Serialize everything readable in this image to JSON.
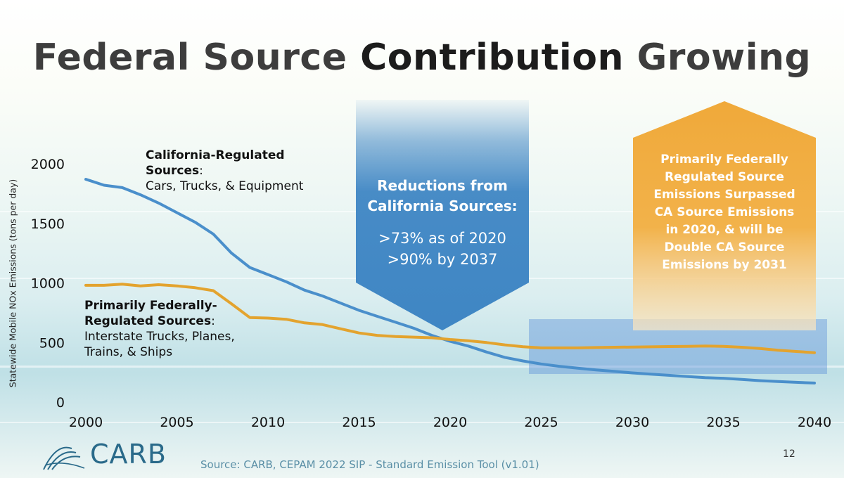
{
  "title": {
    "part1": "Federal Source ",
    "part2": "Contribution",
    "part3": " Growing"
  },
  "chart_data": {
    "type": "line",
    "ylabel": "Statewide Mobile NOx Emissions (tons per day)",
    "xlim": [
      2000,
      2040
    ],
    "ylim": [
      0,
      2000
    ],
    "xticks": [
      2000,
      2005,
      2010,
      2015,
      2020,
      2025,
      2030,
      2035,
      2040
    ],
    "yticks": [
      0,
      500,
      1000,
      1500,
      2000
    ],
    "series": [
      {
        "color": "#4a8fcb",
        "x": [
          2000,
          2001,
          2002,
          2003,
          2004,
          2005,
          2006,
          2007,
          2008,
          2009,
          2010,
          2011,
          2012,
          2013,
          2014,
          2015,
          2016,
          2017,
          2018,
          2019,
          2020,
          2021,
          2022,
          2023,
          2024,
          2025,
          2026,
          2027,
          2028,
          2029,
          2030,
          2031,
          2032,
          2033,
          2034,
          2035,
          2036,
          2037,
          2038,
          2039,
          2040
        ],
        "values": [
          1870,
          1820,
          1800,
          1740,
          1670,
          1590,
          1510,
          1410,
          1250,
          1130,
          1070,
          1010,
          940,
          890,
          830,
          770,
          720,
          670,
          620,
          560,
          510,
          470,
          420,
          375,
          345,
          320,
          300,
          285,
          270,
          258,
          245,
          235,
          225,
          215,
          205,
          200,
          190,
          180,
          172,
          166,
          160
        ]
      },
      {
        "color": "#e3a32e",
        "x": [
          2000,
          2001,
          2002,
          2003,
          2004,
          2005,
          2006,
          2007,
          2008,
          2009,
          2010,
          2011,
          2012,
          2013,
          2014,
          2015,
          2016,
          2017,
          2018,
          2019,
          2020,
          2021,
          2022,
          2023,
          2024,
          2025,
          2026,
          2027,
          2028,
          2029,
          2030,
          2031,
          2032,
          2033,
          2034,
          2035,
          2036,
          2037,
          2038,
          2039,
          2040
        ],
        "values": [
          980,
          980,
          990,
          975,
          985,
          975,
          960,
          935,
          825,
          710,
          705,
          695,
          665,
          650,
          615,
          580,
          560,
          550,
          545,
          540,
          525,
          515,
          500,
          480,
          465,
          455,
          455,
          455,
          458,
          460,
          462,
          464,
          466,
          468,
          470,
          468,
          460,
          450,
          435,
          425,
          415
        ]
      }
    ]
  },
  "annotations": {
    "ca_title_line1": "California-Regulated",
    "ca_title_line2": "Sources",
    "ca_colon": ":",
    "ca_desc": "Cars, Trucks, & Equipment",
    "fed_title_line1": "Primarily Federally-",
    "fed_title_line2": "Regulated Sources",
    "fed_colon": ":",
    "fed_desc_line1": "Interstate Trucks, Planes,",
    "fed_desc_line2": "Trains, & Ships"
  },
  "blue_callout": {
    "color": "#3f86c4",
    "title_line1": "Reductions from",
    "title_line2": "California Sources:",
    "line1": ">73% as of 2020",
    "line2": ">90% by 2037"
  },
  "orange_callout": {
    "color": "#f0a93a",
    "lines": [
      "Primarily Federally",
      "Regulated Source",
      "Emissions Surpassed",
      "CA Source Emissions",
      "in 2020, & will be",
      "Double CA Source",
      "Emissions by 2031"
    ]
  },
  "logo_text": "CARB",
  "source": "Source: CARB, CEPAM 2022 SIP - Standard Emission Tool (v1.01)",
  "page_number": "12"
}
